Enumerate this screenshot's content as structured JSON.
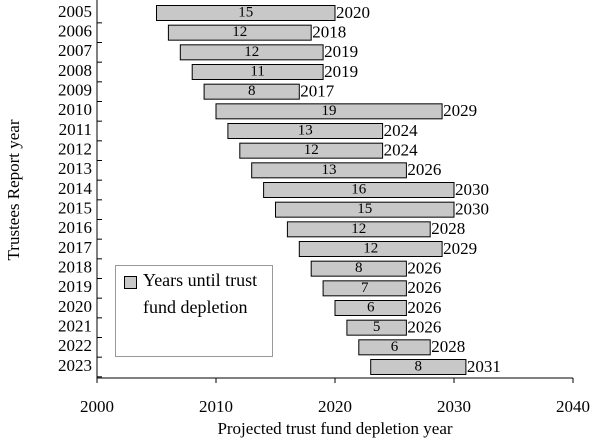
{
  "chart_data": {
    "type": "floating-bar",
    "xlabel": "Projected trust fund depletion year",
    "ylabel": "Trustees Report year",
    "legend": "Years until trust fund depletion",
    "legend_position": "lower left",
    "color": "#c8c8c8",
    "categories": [
      2005,
      2006,
      2007,
      2008,
      2009,
      2010,
      2011,
      2012,
      2013,
      2014,
      2015,
      2016,
      2017,
      2018,
      2019,
      2020,
      2021,
      2022,
      2023
    ],
    "values": [
      2020,
      2018,
      2019,
      2019,
      2017,
      2029,
      2024,
      2024,
      2026,
      2030,
      2030,
      2028,
      2029,
      2026,
      2026,
      2026,
      2026,
      2028,
      2031
    ],
    "durations": [
      15,
      12,
      12,
      11,
      8,
      19,
      13,
      12,
      13,
      16,
      15,
      12,
      12,
      8,
      7,
      6,
      5,
      6,
      8
    ],
    "xlim": [
      2000,
      2040
    ],
    "xticks": [
      2000,
      2010,
      2020,
      2030,
      2040
    ]
  }
}
